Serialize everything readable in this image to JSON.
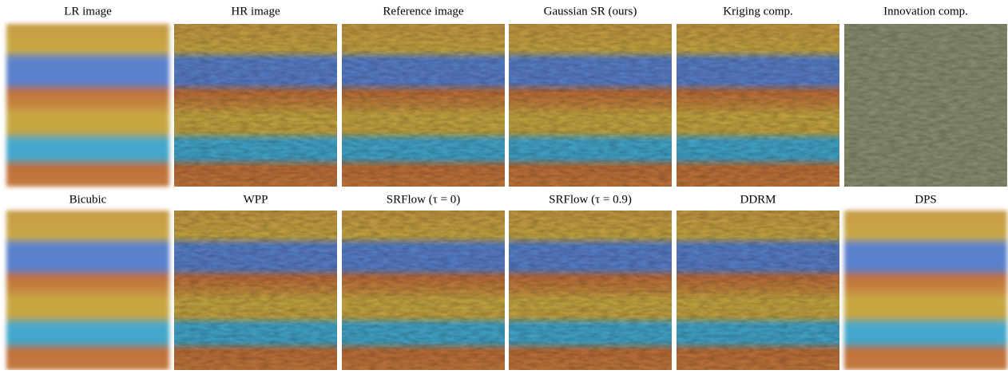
{
  "panels": [
    {
      "label": "LR image"
    },
    {
      "label": "HR image"
    },
    {
      "label": "Reference image"
    },
    {
      "label": "Gaussian SR (ours)"
    },
    {
      "label": "Kriging comp."
    },
    {
      "label": "Innovation comp."
    },
    {
      "label": "Bicubic"
    },
    {
      "label": "WPP"
    },
    {
      "label": "SRFlow (τ = 0)"
    },
    {
      "label": "SRFlow (τ = 0.9)"
    },
    {
      "label": "DDRM"
    },
    {
      "label": "DPS"
    }
  ]
}
